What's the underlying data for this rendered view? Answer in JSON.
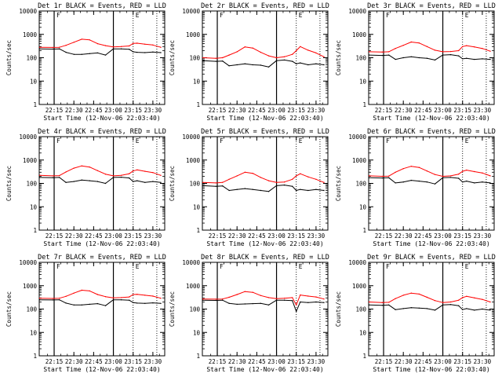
{
  "figure": {
    "background": "#ffffff",
    "events_color": "#000000",
    "lld_color": "#ff0000"
  },
  "chart_data": [
    {
      "type": "line",
      "title": "Det 1r BLACK = Events, RED = LLD",
      "xlabel": "Start Time (12-Nov-06 22:03:40)",
      "ylabel": "Counts/sec",
      "yscale": "log",
      "ylim": [
        1,
        10000
      ],
      "xtick_labels": [
        "22:15",
        "22:30",
        "22:45",
        "23:00",
        "23:15",
        "23:30"
      ],
      "ytick_labels": [
        "1",
        "10",
        "100",
        "1000",
        "10000"
      ],
      "markers": {
        "solid": [
          "22:15",
          "23:00"
        ],
        "dotted": [
          "23:15",
          "23:33"
        ]
      },
      "marker_labels": [
        "F",
        "E"
      ],
      "x": [
        "22:04",
        "22:14",
        "22:19",
        "22:24",
        "22:30",
        "22:36",
        "22:42",
        "22:48",
        "22:54",
        "23:00",
        "23:06",
        "23:12",
        "23:15",
        "23:18",
        "23:24",
        "23:30",
        "23:36"
      ],
      "series": [
        {
          "name": "Events",
          "values": [
            240,
            235,
            240,
            170,
            140,
            140,
            150,
            160,
            130,
            240,
            240,
            230,
            180,
            170,
            165,
            175,
            165
          ]
        },
        {
          "name": "LLD",
          "values": [
            280,
            275,
            280,
            340,
            460,
            620,
            580,
            400,
            330,
            290,
            300,
            320,
            410,
            420,
            380,
            350,
            280
          ]
        }
      ]
    },
    {
      "type": "line",
      "title": "Det 2r BLACK = Events, RED = LLD",
      "xlabel": "Start Time (12-Nov-06 22:03:40)",
      "ylabel": "Counts/sec",
      "yscale": "log",
      "ylim": [
        1,
        10000
      ],
      "xtick_labels": [
        "22:15",
        "22:30",
        "22:45",
        "23:00",
        "23:15",
        "23:30"
      ],
      "ytick_labels": [
        "1",
        "10",
        "100",
        "1000",
        "10000"
      ],
      "markers": {
        "solid": [
          "22:15",
          "23:00"
        ],
        "dotted": [
          "23:15",
          "23:33"
        ]
      },
      "marker_labels": [
        "F",
        "E"
      ],
      "x": [
        "22:04",
        "22:14",
        "22:19",
        "22:24",
        "22:30",
        "22:36",
        "22:42",
        "22:48",
        "22:54",
        "23:00",
        "23:06",
        "23:12",
        "23:15",
        "23:18",
        "23:24",
        "23:30",
        "23:36"
      ],
      "series": [
        {
          "name": "Events",
          "values": [
            75,
            70,
            72,
            45,
            50,
            55,
            50,
            48,
            40,
            75,
            80,
            70,
            55,
            60,
            50,
            55,
            50
          ]
        },
        {
          "name": "LLD",
          "values": [
            100,
            95,
            100,
            130,
            180,
            290,
            260,
            170,
            120,
            100,
            110,
            140,
            200,
            300,
            210,
            160,
            110
          ]
        }
      ]
    },
    {
      "type": "line",
      "title": "Det 3r BLACK = Events, RED = LLD",
      "xlabel": "Start Time (12-Nov-06 22:03:40)",
      "ylabel": "Counts/sec",
      "yscale": "log",
      "ylim": [
        1,
        10000
      ],
      "xtick_labels": [
        "22:15",
        "22:30",
        "22:45",
        "23:00",
        "23:15",
        "23:30"
      ],
      "ytick_labels": [
        "1",
        "10",
        "100",
        "1000",
        "10000"
      ],
      "markers": {
        "solid": [
          "22:15",
          "23:00"
        ],
        "dotted": [
          "23:15",
          "23:33"
        ]
      },
      "marker_labels": [
        "F",
        "E"
      ],
      "x": [
        "22:04",
        "22:14",
        "22:19",
        "22:24",
        "22:30",
        "22:36",
        "22:42",
        "22:48",
        "22:54",
        "23:00",
        "23:06",
        "23:12",
        "23:15",
        "23:18",
        "23:24",
        "23:30",
        "23:36"
      ],
      "series": [
        {
          "name": "Events",
          "values": [
            130,
            125,
            130,
            85,
            100,
            110,
            100,
            95,
            80,
            130,
            135,
            120,
            90,
            95,
            85,
            90,
            85
          ]
        },
        {
          "name": "LLD",
          "values": [
            180,
            175,
            180,
            250,
            340,
            470,
            430,
            300,
            210,
            180,
            185,
            200,
            300,
            330,
            290,
            250,
            190
          ]
        }
      ]
    },
    {
      "type": "line",
      "title": "Det 4r BLACK = Events, RED = LLD",
      "xlabel": "Start Time (12-Nov-06 22:03:40)",
      "ylabel": "Counts/sec",
      "yscale": "log",
      "ylim": [
        1,
        10000
      ],
      "xtick_labels": [
        "22:15",
        "22:30",
        "22:45",
        "23:00",
        "23:15",
        "23:30"
      ],
      "ytick_labels": [
        "1",
        "10",
        "100",
        "1000",
        "10000"
      ],
      "markers": {
        "solid": [
          "22:15",
          "23:00"
        ],
        "dotted": [
          "23:15",
          "23:33"
        ]
      },
      "marker_labels": [
        "F",
        "E"
      ],
      "x": [
        "22:04",
        "22:14",
        "22:19",
        "22:24",
        "22:30",
        "22:36",
        "22:42",
        "22:48",
        "22:54",
        "23:00",
        "23:06",
        "23:12",
        "23:15",
        "23:18",
        "23:24",
        "23:30",
        "23:36"
      ],
      "series": [
        {
          "name": "Events",
          "values": [
            180,
            175,
            180,
            110,
            120,
            140,
            130,
            120,
            100,
            180,
            185,
            170,
            120,
            130,
            110,
            120,
            110
          ]
        },
        {
          "name": "LLD",
          "values": [
            220,
            210,
            215,
            310,
            450,
            560,
            500,
            350,
            250,
            210,
            220,
            260,
            340,
            380,
            330,
            290,
            220
          ]
        }
      ]
    },
    {
      "type": "line",
      "title": "Det 5r BLACK = Events, RED = LLD",
      "xlabel": "Start Time (12-Nov-06 22:03:40)",
      "ylabel": "Counts/sec",
      "yscale": "log",
      "ylim": [
        1,
        10000
      ],
      "xtick_labels": [
        "22:15",
        "22:30",
        "22:45",
        "23:00",
        "23:15",
        "23:30"
      ],
      "ytick_labels": [
        "1",
        "10",
        "100",
        "1000",
        "10000"
      ],
      "markers": {
        "solid": [
          "22:15",
          "23:00"
        ],
        "dotted": [
          "23:15",
          "23:33"
        ]
      },
      "marker_labels": [
        "F",
        "E"
      ],
      "x": [
        "22:04",
        "22:14",
        "22:19",
        "22:24",
        "22:30",
        "22:36",
        "22:42",
        "22:48",
        "22:54",
        "23:00",
        "23:06",
        "23:12",
        "23:15",
        "23:18",
        "23:24",
        "23:30",
        "23:36"
      ],
      "series": [
        {
          "name": "Events",
          "values": [
            80,
            75,
            78,
            50,
            55,
            60,
            55,
            50,
            45,
            80,
            85,
            75,
            50,
            55,
            50,
            55,
            50
          ]
        },
        {
          "name": "LLD",
          "values": [
            110,
            105,
            110,
            150,
            210,
            300,
            270,
            180,
            130,
            110,
            115,
            150,
            210,
            260,
            190,
            150,
            110
          ]
        }
      ]
    },
    {
      "type": "line",
      "title": "Det 6r BLACK = Events, RED = LLD",
      "xlabel": "Start Time (12-Nov-06 22:03:40)",
      "ylabel": "Counts/sec",
      "yscale": "log",
      "ylim": [
        1,
        10000
      ],
      "xtick_labels": [
        "22:15",
        "22:30",
        "22:45",
        "23:00",
        "23:15",
        "23:30"
      ],
      "ytick_labels": [
        "1",
        "10",
        "100",
        "1000",
        "10000"
      ],
      "markers": {
        "solid": [
          "22:15",
          "23:00"
        ],
        "dotted": [
          "23:15",
          "23:33"
        ]
      },
      "marker_labels": [
        "F",
        "E"
      ],
      "x": [
        "22:04",
        "22:14",
        "22:19",
        "22:24",
        "22:30",
        "22:36",
        "22:42",
        "22:48",
        "22:54",
        "23:00",
        "23:06",
        "23:12",
        "23:15",
        "23:18",
        "23:24",
        "23:30",
        "23:36"
      ],
      "series": [
        {
          "name": "Events",
          "values": [
            175,
            170,
            175,
            105,
            115,
            135,
            125,
            115,
            95,
            175,
            180,
            165,
            115,
            125,
            105,
            115,
            105
          ]
        },
        {
          "name": "LLD",
          "values": [
            210,
            200,
            205,
            300,
            430,
            540,
            480,
            340,
            240,
            200,
            210,
            250,
            330,
            370,
            320,
            280,
            210
          ]
        }
      ]
    },
    {
      "type": "line",
      "title": "Det 7r BLACK = Events, RED = LLD",
      "xlabel": "Start Time (12-Nov-06 22:03:40)",
      "ylabel": "Counts/sec",
      "yscale": "log",
      "ylim": [
        1,
        10000
      ],
      "xtick_labels": [
        "22:15",
        "22:30",
        "22:45",
        "23:00",
        "23:15",
        "23:30"
      ],
      "ytick_labels": [
        "1",
        "10",
        "100",
        "1000",
        "10000"
      ],
      "markers": {
        "solid": [
          "22:15",
          "23:00"
        ],
        "dotted": [
          "23:15",
          "23:33"
        ]
      },
      "marker_labels": [
        "F",
        "E"
      ],
      "x": [
        "22:04",
        "22:14",
        "22:19",
        "22:24",
        "22:30",
        "22:36",
        "22:42",
        "22:48",
        "22:54",
        "23:00",
        "23:06",
        "23:12",
        "23:15",
        "23:18",
        "23:24",
        "23:30",
        "23:36"
      ],
      "series": [
        {
          "name": "Events",
          "values": [
            250,
            245,
            250,
            180,
            150,
            150,
            160,
            170,
            140,
            250,
            250,
            240,
            190,
            180,
            175,
            185,
            175
          ]
        },
        {
          "name": "LLD",
          "values": [
            290,
            285,
            290,
            350,
            480,
            640,
            600,
            420,
            340,
            300,
            310,
            330,
            420,
            430,
            390,
            360,
            290
          ]
        }
      ]
    },
    {
      "type": "line",
      "title": "Det 8r BLACK = Events, RED = LLD",
      "xlabel": "Start Time (12-Nov-06 22:03:40)",
      "ylabel": "Counts/sec",
      "yscale": "log",
      "ylim": [
        1,
        10000
      ],
      "xtick_labels": [
        "22:15",
        "22:30",
        "22:45",
        "23:00",
        "23:15",
        "23:30"
      ],
      "ytick_labels": [
        "1",
        "10",
        "100",
        "1000",
        "10000"
      ],
      "markers": {
        "solid": [
          "22:15",
          "23:00"
        ],
        "dotted": [
          "23:15",
          "23:33"
        ]
      },
      "marker_labels": [
        "F",
        "E"
      ],
      "x": [
        "22:04",
        "22:14",
        "22:19",
        "22:24",
        "22:30",
        "22:36",
        "22:42",
        "22:48",
        "22:54",
        "23:00",
        "23:06",
        "23:12",
        "23:15",
        "23:18",
        "23:24",
        "23:30",
        "23:36"
      ],
      "series": [
        {
          "name": "Events",
          "values": [
            240,
            235,
            240,
            175,
            160,
            165,
            170,
            175,
            150,
            240,
            240,
            230,
            80,
            200,
            190,
            200,
            190
          ]
        },
        {
          "name": "LLD",
          "values": [
            270,
            265,
            270,
            320,
            420,
            560,
            520,
            380,
            310,
            280,
            290,
            310,
            150,
            400,
            360,
            330,
            270
          ]
        }
      ]
    },
    {
      "type": "line",
      "title": "Det 9r BLACK = Events, RED = LLD",
      "xlabel": "Start Time (12-Nov-06 22:03:40)",
      "ylabel": "Counts/sec",
      "yscale": "log",
      "ylim": [
        1,
        10000
      ],
      "xtick_labels": [
        "22:15",
        "22:30",
        "22:45",
        "23:00",
        "23:15",
        "23:30"
      ],
      "ytick_labels": [
        "1",
        "10",
        "100",
        "1000",
        "10000"
      ],
      "markers": {
        "solid": [
          "22:15",
          "23:00"
        ],
        "dotted": [
          "23:15",
          "23:33"
        ]
      },
      "marker_labels": [
        "F",
        "E"
      ],
      "x": [
        "22:04",
        "22:14",
        "22:19",
        "22:24",
        "22:30",
        "22:36",
        "22:42",
        "22:48",
        "22:54",
        "23:00",
        "23:06",
        "23:12",
        "23:15",
        "23:18",
        "23:24",
        "23:30",
        "23:36"
      ],
      "series": [
        {
          "name": "Events",
          "values": [
            150,
            145,
            150,
            95,
            105,
            115,
            110,
            105,
            90,
            150,
            155,
            140,
            95,
            105,
            90,
            100,
            90
          ]
        },
        {
          "name": "LLD",
          "values": [
            200,
            190,
            195,
            280,
            390,
            480,
            440,
            320,
            230,
            190,
            200,
            240,
            310,
            350,
            300,
            260,
            200
          ]
        }
      ]
    }
  ]
}
